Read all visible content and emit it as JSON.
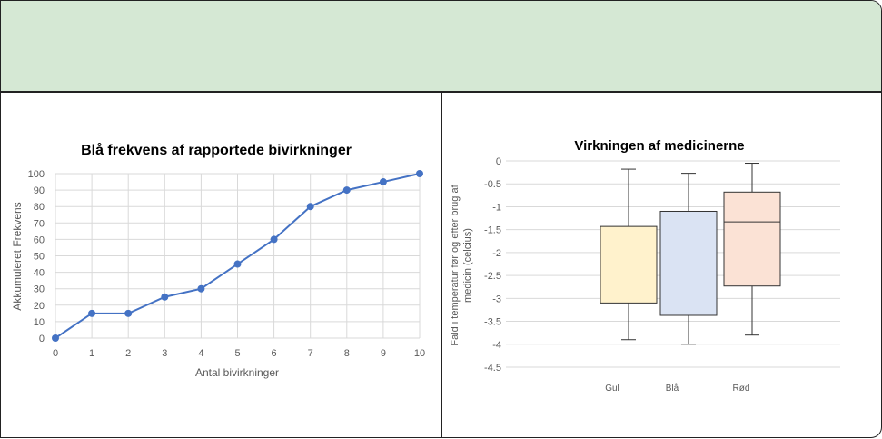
{
  "colors": {
    "header_band": "#d5e8d4",
    "line_series": "#4472c4",
    "grid": "#d9d9d9",
    "border": "#222222"
  },
  "chart_data": [
    {
      "type": "line",
      "title": "Blå frekvens af rapportede bivirkninger",
      "xlabel": "Antal bivirkninger",
      "ylabel": "Akkumuleret Frekvens",
      "xlim": [
        0,
        10
      ],
      "ylim": [
        0,
        100
      ],
      "x_ticks": [
        "0",
        "1",
        "2",
        "3",
        "4",
        "5",
        "6",
        "7",
        "8",
        "9",
        "10"
      ],
      "y_ticks": [
        "0",
        "10",
        "20",
        "30",
        "40",
        "50",
        "60",
        "70",
        "80",
        "90",
        "100"
      ],
      "grid": true,
      "markers": true,
      "series": [
        {
          "x": [
            0,
            1,
            2,
            3,
            4,
            5,
            6,
            7,
            8,
            9,
            10
          ],
          "values": [
            0,
            15,
            15,
            25,
            30,
            45,
            60,
            80,
            90,
            95,
            100
          ],
          "color": "#4472c4"
        }
      ]
    },
    {
      "type": "box",
      "title": "Virkningen af medicinerne",
      "xlabel": "",
      "ylabel": "Fald i temperatur før og efter brug af medicin (celcius)",
      "ylim": [
        -4.5,
        0
      ],
      "y_ticks": [
        "0",
        "-0.5",
        "-1",
        "-1.5",
        "-2",
        "-2.5",
        "-3",
        "-3.5",
        "-4",
        "-4.5"
      ],
      "grid": true,
      "categories": [
        "Gul",
        "Blå",
        "Rød"
      ],
      "boxes": [
        {
          "category": "Gul",
          "min": -3.9,
          "q1": -3.1,
          "median": -2.25,
          "q3": -1.43,
          "max": -0.18,
          "fill": "#fff2cc"
        },
        {
          "category": "Blå",
          "min": -4.0,
          "q1": -3.37,
          "median": -2.25,
          "q3": -1.1,
          "max": -0.27,
          "fill": "#dae3f3"
        },
        {
          "category": "Rød",
          "min": -3.8,
          "q1": -2.73,
          "median": -1.33,
          "q3": -0.68,
          "max": -0.05,
          "fill": "#fbe2d5"
        }
      ]
    }
  ]
}
